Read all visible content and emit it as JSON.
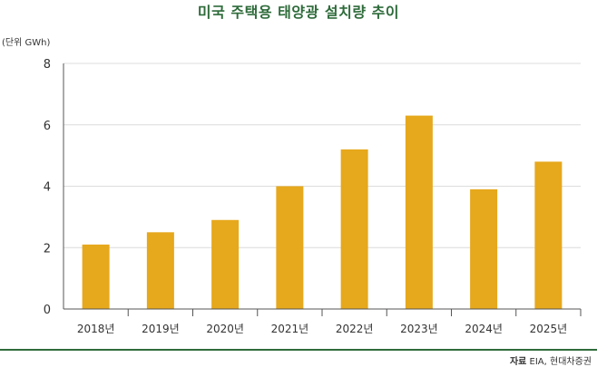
{
  "title": "미국 주택용 태양광 설치량 추이",
  "unit_label": "(단위 GWh)",
  "source": {
    "label": "자료",
    "text": "EIA, 현대차증권"
  },
  "colors": {
    "bar": "#E6A81C",
    "grid": "#dcdcdc",
    "axis": "#555555",
    "title": "#2e6b3a"
  },
  "chart_data": {
    "type": "bar",
    "categories": [
      "2018년",
      "2019년",
      "2020년",
      "2021년",
      "2022년",
      "2023년",
      "2024년",
      "2025년"
    ],
    "values": [
      2.1,
      2.5,
      2.9,
      4.0,
      5.2,
      6.3,
      3.9,
      4.8
    ],
    "ylabel": "(단위 GWh)",
    "ylim": [
      0,
      8
    ],
    "yticks": [
      "0",
      "2",
      "4",
      "6",
      "8"
    ],
    "grid": true,
    "legend": "none"
  }
}
